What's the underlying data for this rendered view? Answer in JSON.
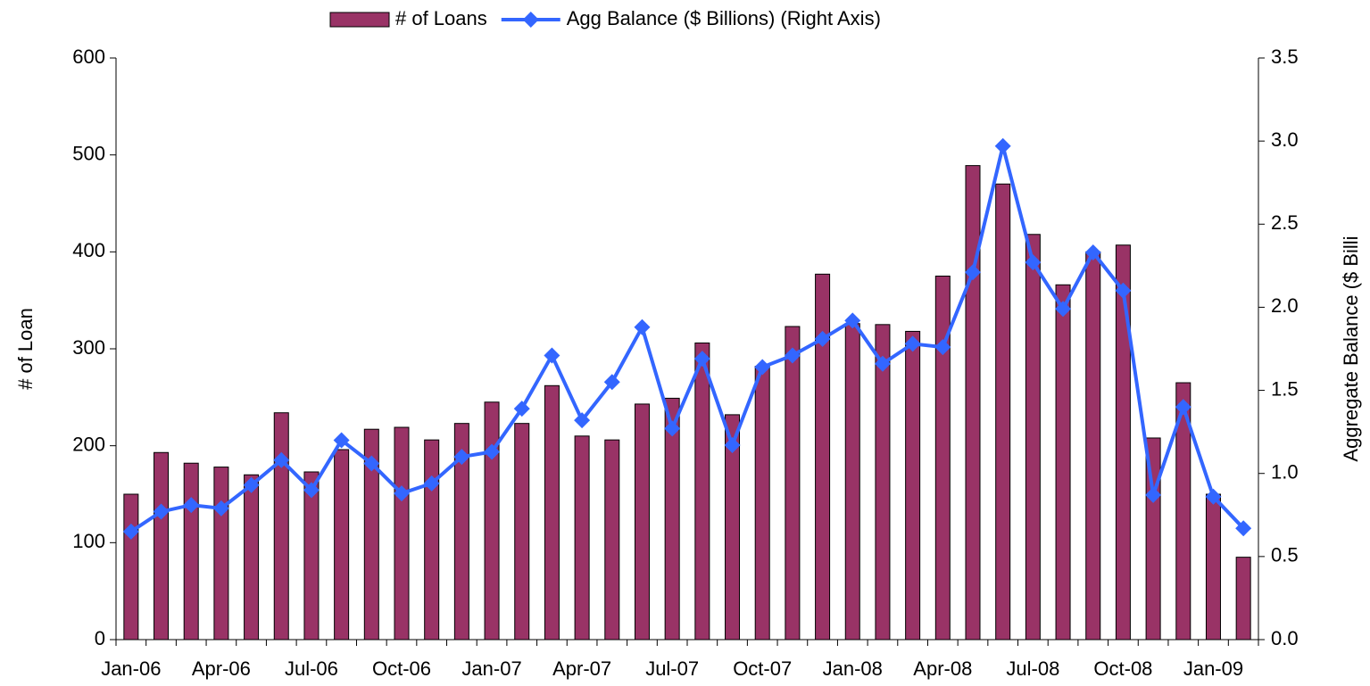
{
  "chart_data": {
    "type": "bar-line",
    "x_axis_label": null,
    "y_axis_label": "# of Loan",
    "y2_axis_label": "Aggregate Balance ($ Billi",
    "categories": [
      "Jan-06",
      null,
      null,
      "Apr-06",
      null,
      null,
      "Jul-06",
      null,
      null,
      "Oct-06",
      null,
      null,
      "Jan-07",
      null,
      null,
      "Apr-07",
      null,
      null,
      "Jul-07",
      null,
      null,
      "Oct-07",
      null,
      null,
      "Jan-08",
      null,
      null,
      "Apr-08",
      null,
      null,
      "Jul-08",
      null,
      null,
      "Oct-08",
      null,
      null,
      "Jan-09",
      null
    ],
    "series": [
      {
        "name": "# of Loans",
        "type": "bar",
        "color": "#993366",
        "values": [
          150,
          193,
          182,
          178,
          170,
          234,
          173,
          196,
          217,
          219,
          206,
          223,
          245,
          223,
          262,
          210,
          206,
          243,
          249,
          306,
          232,
          282,
          323,
          377,
          326,
          325,
          318,
          375,
          489,
          470,
          418,
          366,
          400,
          407,
          208,
          265,
          150,
          85
        ]
      },
      {
        "name": "Agg Balance ($ Billions) (Right Axis)",
        "type": "line",
        "axis": "y2",
        "color": "#3366ff",
        "values": [
          0.65,
          0.77,
          0.81,
          0.79,
          0.93,
          1.08,
          0.9,
          1.2,
          1.06,
          0.88,
          0.94,
          1.1,
          1.13,
          1.39,
          1.71,
          1.32,
          1.55,
          1.88,
          1.27,
          1.69,
          1.17,
          1.64,
          1.71,
          1.81,
          1.92,
          1.66,
          1.78,
          1.76,
          2.21,
          2.97,
          2.27,
          1.99,
          2.33,
          2.1,
          0.87,
          1.4,
          0.86,
          0.67
        ]
      }
    ],
    "ylim": [
      0,
      600
    ],
    "yticks": [
      0,
      100,
      200,
      300,
      400,
      500,
      600
    ],
    "y2lim": [
      0,
      3.5
    ],
    "y2ticks": [
      {
        "value": 0,
        "label": "0.0"
      },
      {
        "value": 0.5,
        "label": "0.5"
      },
      {
        "value": 1,
        "label": "1.0"
      },
      {
        "value": 1.5,
        "label": "1.5"
      },
      {
        "value": 2,
        "label": "2.0"
      },
      {
        "value": 2.5,
        "label": "2.5"
      },
      {
        "value": 3,
        "label": "3.0"
      },
      {
        "value": 3.5,
        "label": "3.5"
      }
    ],
    "grid": false,
    "legend": "top"
  }
}
